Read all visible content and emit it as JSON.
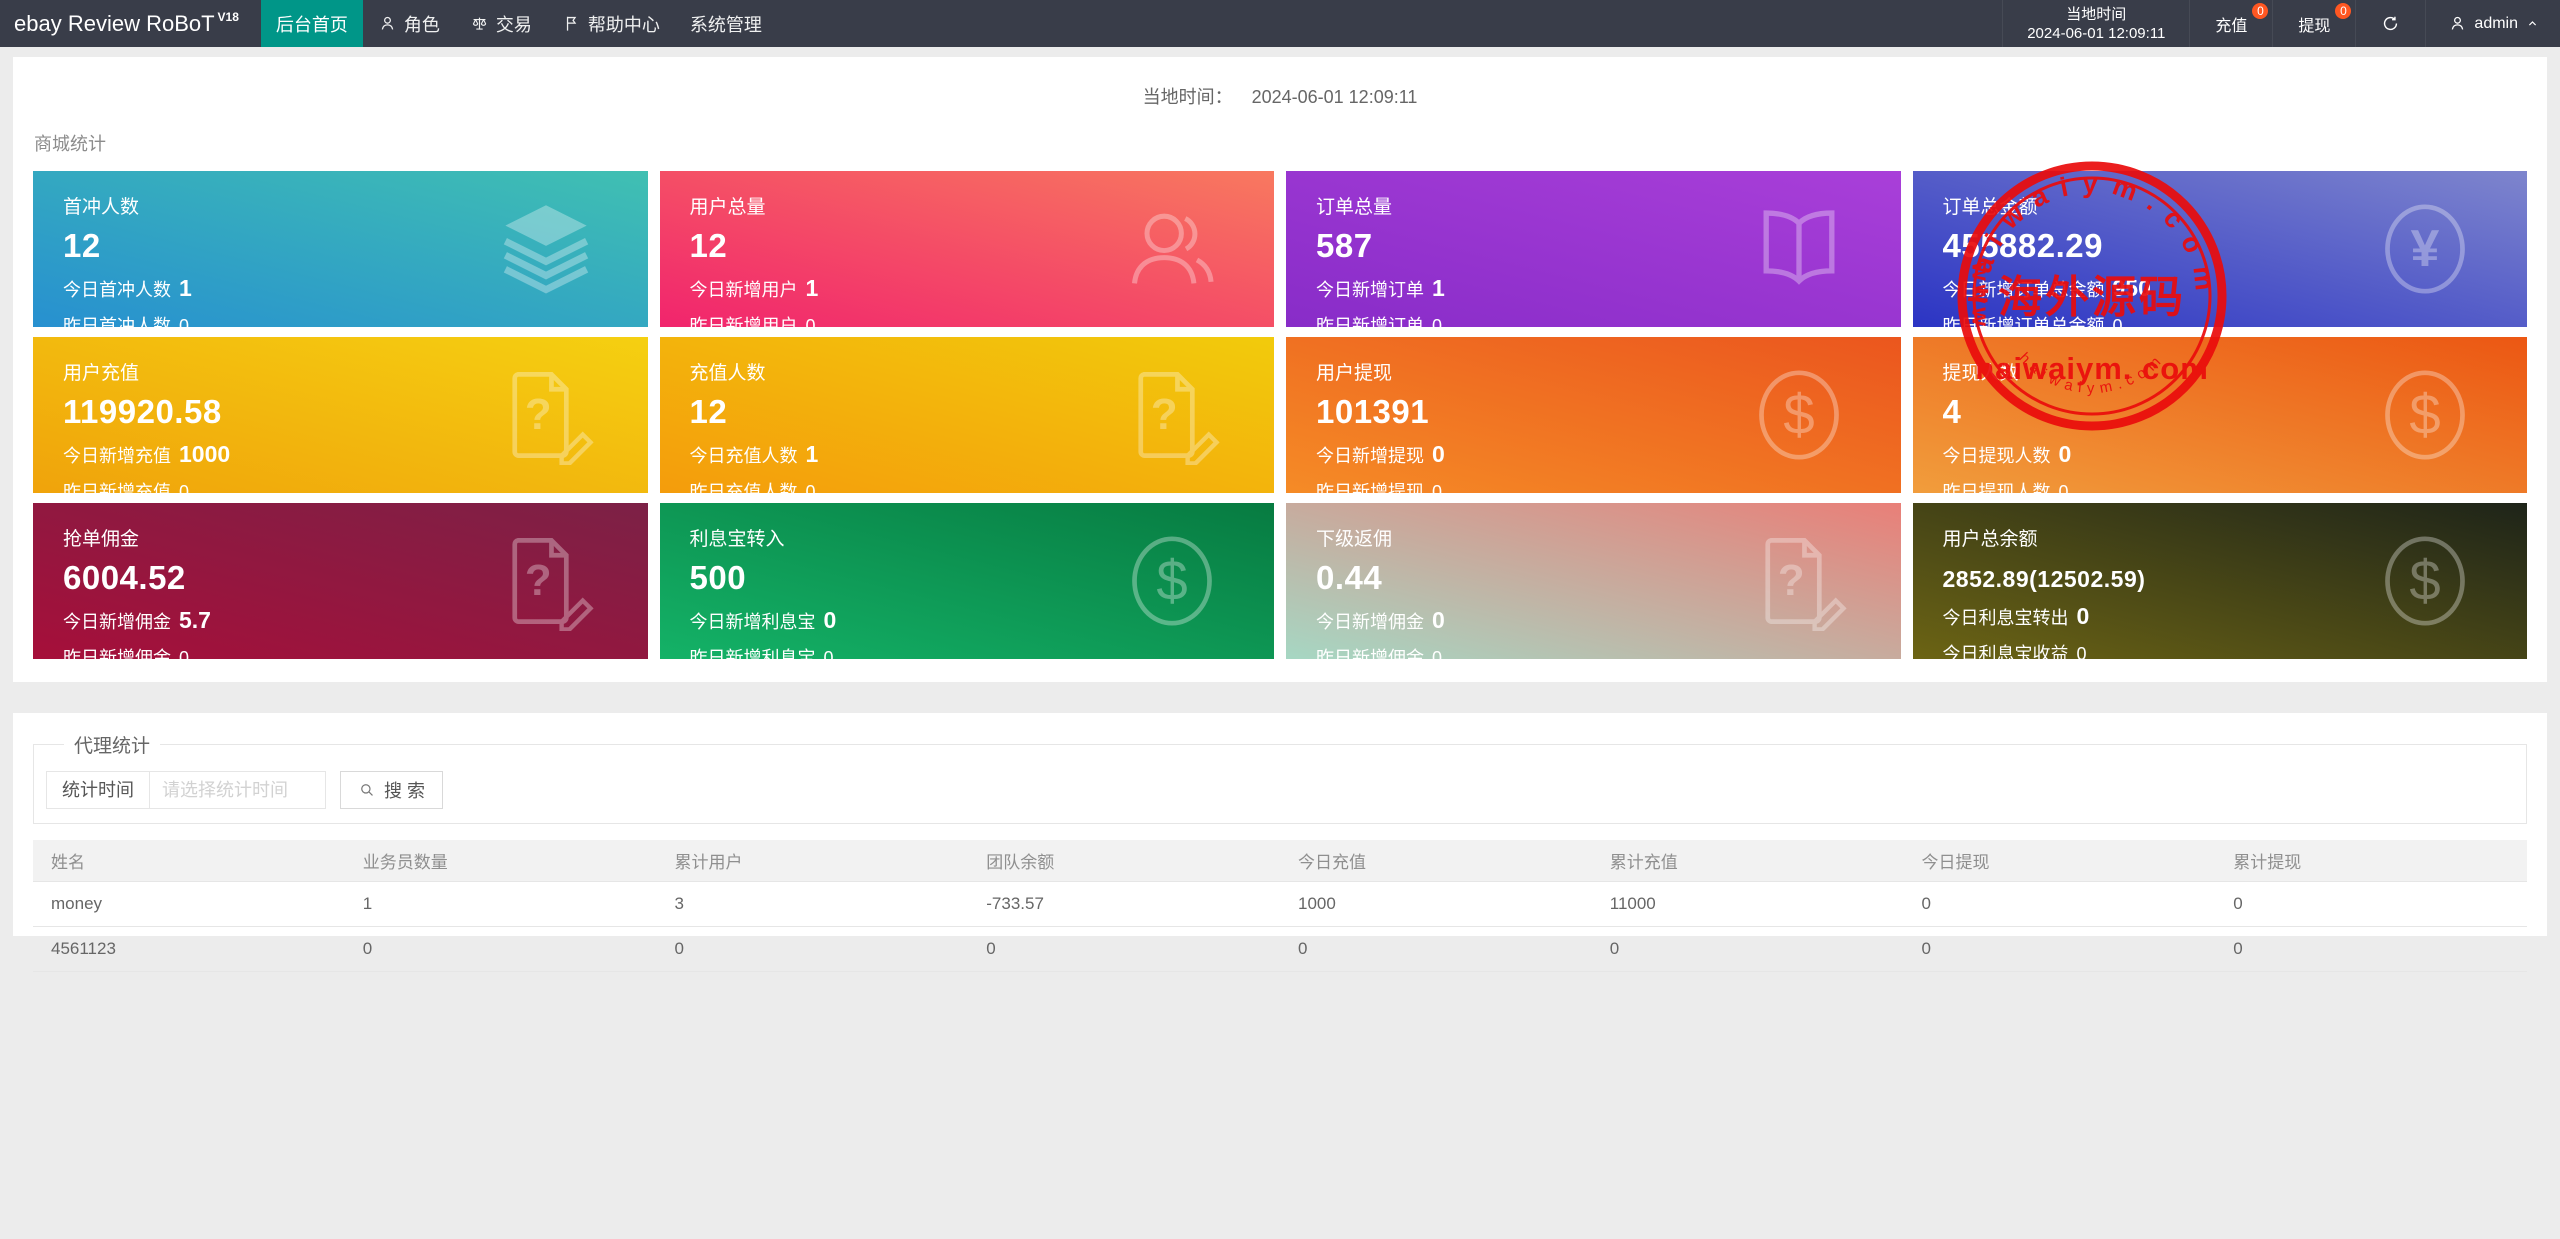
{
  "navbar": {
    "logo": "ebay Review RoBoT",
    "logo_sup": "V18",
    "menu": [
      {
        "name": "home",
        "label": "后台首页",
        "icon": null,
        "active": true
      },
      {
        "name": "roles",
        "label": "角色",
        "icon": "person",
        "active": false
      },
      {
        "name": "trade",
        "label": "交易",
        "icon": "scales",
        "active": false
      },
      {
        "name": "help",
        "label": "帮助中心",
        "icon": "flag",
        "active": false
      },
      {
        "name": "system",
        "label": "系统管理",
        "icon": null,
        "active": false
      }
    ],
    "local_time_label": "当地时间",
    "local_time_value": "2024-06-01 12:09:11",
    "recharge_label": "充值",
    "recharge_badge": "0",
    "withdraw_label": "提现",
    "withdraw_badge": "0",
    "username": "admin",
    "accent_color": "#009688",
    "badge_color": "#ff5722"
  },
  "header_bar": {
    "local_time_label": "当地时间：",
    "local_time_value": "2024-06-01 12:09:11"
  },
  "stats_section": {
    "title": "商城统计",
    "cards": [
      {
        "name": "first-recharge-users",
        "title": "首冲人数",
        "value": "12",
        "line1_label": "今日首冲人数",
        "line1_value": "1",
        "line2_label": "昨日首冲人数",
        "line2_value": "0",
        "icon": "layers",
        "gradient": [
          "#2790d0",
          "#40c0b2"
        ]
      },
      {
        "name": "total-users",
        "title": "用户总量",
        "value": "12",
        "line1_label": "今日新增用户",
        "line1_value": "1",
        "line2_label": "昨日新增用户",
        "line2_value": "0",
        "icon": "users",
        "gradient": [
          "#f1246d",
          "#f8795f"
        ]
      },
      {
        "name": "total-orders",
        "title": "订单总量",
        "value": "587",
        "line1_label": "今日新增订单",
        "line1_value": "1",
        "line2_label": "昨日新增订单",
        "line2_value": "0",
        "icon": "book",
        "gradient": [
          "#882cc8",
          "#a93fd9"
        ]
      },
      {
        "name": "total-order-amount",
        "title": "订单总金额",
        "value": "455882.29",
        "line1_label": "今日新增订单总金额",
        "line1_value": "950",
        "line2_label": "昨日新增订单总金额",
        "line2_value": "0",
        "icon": "yen-circle",
        "gradient": [
          "#2b34c4",
          "#7e85cd"
        ]
      },
      {
        "name": "user-recharge",
        "title": "用户充值",
        "value": "119920.58",
        "line1_label": "今日新增充值",
        "line1_value": "1000",
        "line2_label": "昨日新增充值",
        "line2_value": "0",
        "icon": "doc-edit",
        "gradient": [
          "#f0a30b",
          "#f5d011"
        ]
      },
      {
        "name": "recharge-users",
        "title": "充值人数",
        "value": "12",
        "line1_label": "今日充值人数",
        "line1_value": "1",
        "line2_label": "昨日充值人数",
        "line2_value": "0",
        "icon": "doc-edit",
        "gradient": [
          "#f49c0c",
          "#f2cb0c"
        ]
      },
      {
        "name": "user-withdraw",
        "title": "用户提现",
        "value": "101391",
        "line1_label": "今日新增提现",
        "line1_value": "0",
        "line2_label": "昨日新增提现",
        "line2_value": "0",
        "icon": "dollar-circle",
        "gradient": [
          "#f58b26",
          "#eb561e"
        ]
      },
      {
        "name": "withdraw-users",
        "title": "提现人数",
        "value": "4",
        "line1_label": "今日提现人数",
        "line1_value": "0",
        "line2_label": "昨日提现人数",
        "line2_value": "0",
        "icon": "dollar-circle",
        "gradient": [
          "#f19d3c",
          "#ec5713"
        ]
      },
      {
        "name": "order-commission",
        "title": "抢单佣金",
        "value": "6004.52",
        "line1_label": "今日新增佣金",
        "line1_value": "5.7",
        "line2_label": "昨日新增佣金",
        "line2_value": "0",
        "icon": "doc-edit",
        "gradient": [
          "#a60f3a",
          "#7c2146"
        ]
      },
      {
        "name": "interest-transfer-in",
        "title": "利息宝转入",
        "value": "500",
        "line1_label": "今日新增利息宝",
        "line1_value": "0",
        "line2_label": "昨日新增利息宝",
        "line2_value": "0",
        "icon": "dollar-circle",
        "gradient": [
          "#14b267",
          "#077b41"
        ]
      },
      {
        "name": "sub-commission",
        "title": "下级返佣",
        "value": "0.44",
        "line1_label": "今日新增佣金",
        "line1_value": "0",
        "line2_label": "昨日新增佣金",
        "line2_value": "0",
        "icon": "doc-edit",
        "gradient": [
          "#a6d7c3",
          "#e97f78"
        ]
      },
      {
        "name": "user-total-balance",
        "title": "用户总余额",
        "value": "2852.89(12502.59)",
        "line1_label": "今日利息宝转出",
        "line1_value": "0",
        "line2_label": "今日利息宝收益",
        "line2_value": "0",
        "icon": "dollar-circle",
        "gradient": [
          "#6c6414",
          "#1e2419"
        ],
        "small_value": true
      }
    ]
  },
  "agent_section": {
    "title": "代理统计",
    "filter_label": "统计时间",
    "filter_placeholder": "请选择统计时间",
    "search_label": "搜 索",
    "table": {
      "headers": [
        "姓名",
        "业务员数量",
        "累计用户",
        "团队余额",
        "今日充值",
        "累计充值",
        "今日提现",
        "累计提现"
      ],
      "rows": [
        [
          "money",
          "1",
          "3",
          "-733.57",
          "1000",
          "11000",
          "0",
          "0"
        ],
        [
          "4561123",
          "0",
          "0",
          "0",
          "0",
          "0",
          "0",
          "0"
        ]
      ]
    }
  },
  "watermark": {
    "cn_text": "海外源码",
    "domain_text": "haiwaiym. com",
    "arc_text": "haiwaiym.com",
    "arc_text_small": "haiwaiym.com",
    "side_text": "www",
    "color": "#ea0c0c"
  }
}
